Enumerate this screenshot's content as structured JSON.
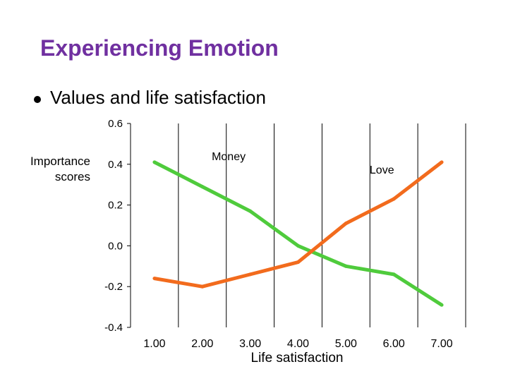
{
  "slide": {
    "title": "Experiencing Emotion",
    "bullet": "Values and life satisfaction"
  },
  "chart_data": {
    "type": "line",
    "x": [
      "1.00",
      "2.00",
      "3.00",
      "4.00",
      "5.00",
      "6.00",
      "7.00"
    ],
    "series": [
      {
        "name": "Money",
        "color": "#4fcb3c",
        "values": [
          0.41,
          0.29,
          0.17,
          0.0,
          -0.1,
          -0.14,
          -0.29
        ]
      },
      {
        "name": "Love",
        "color": "#f26b1d",
        "values": [
          -0.16,
          -0.2,
          -0.14,
          -0.08,
          0.11,
          0.23,
          0.41
        ]
      }
    ],
    "yticks": [
      "0.6",
      "0.4",
      "0.2",
      "0.0",
      "-0.2",
      "-0.4"
    ],
    "ytick_values": [
      0.6,
      0.4,
      0.2,
      0.0,
      -0.2,
      -0.4
    ],
    "ylim": [
      -0.4,
      0.6
    ],
    "ylabel_lines": [
      "Importance",
      "scores"
    ],
    "xlabel": "Life satisfaction",
    "grid": "vertical"
  }
}
